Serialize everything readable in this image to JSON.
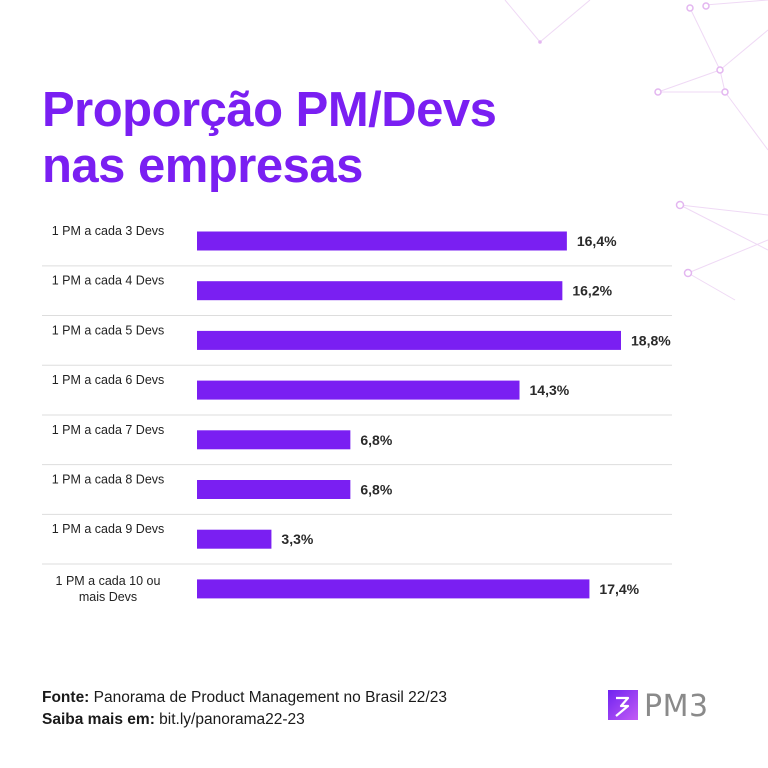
{
  "title_lines": [
    "Proporção PM/Devs",
    "nas empresas"
  ],
  "chart_data": {
    "type": "bar",
    "orientation": "horizontal",
    "title": "Proporção PM/Devs nas empresas",
    "categories": [
      [
        "1 PM a cada 3 Devs"
      ],
      [
        "1 PM a cada 4 Devs"
      ],
      [
        "1 PM a cada 5 Devs"
      ],
      [
        "1 PM a cada 6 Devs"
      ],
      [
        "1 PM a cada 7 Devs"
      ],
      [
        "1 PM a cada 8 Devs"
      ],
      [
        "1 PM a cada 9 Devs"
      ],
      [
        "1 PM a cada 10 ou",
        "mais Devs"
      ]
    ],
    "values": [
      16.4,
      16.2,
      18.8,
      14.3,
      6.8,
      6.8,
      3.3,
      17.4
    ],
    "value_labels": [
      "16,4%",
      "16,2%",
      "18,8%",
      "14,3%",
      "6,8%",
      "6,8%",
      "3,3%",
      "17,4%"
    ],
    "xlim": [
      0,
      18.8
    ],
    "unit": "%",
    "bar_color": "#7a1ff2",
    "separator_color": "#dddddd"
  },
  "footer": {
    "source_label": "Fonte:",
    "source_text": "Panorama de Product Management no Brasil 22/23",
    "more_label": "Saiba mais em:",
    "more_text": "bit.ly/panorama22-23"
  },
  "logo": {
    "text": "PM3",
    "mark_color": "#8e3df5"
  },
  "colors": {
    "accent": "#7a1ff2",
    "network": "#e7c6f2"
  }
}
